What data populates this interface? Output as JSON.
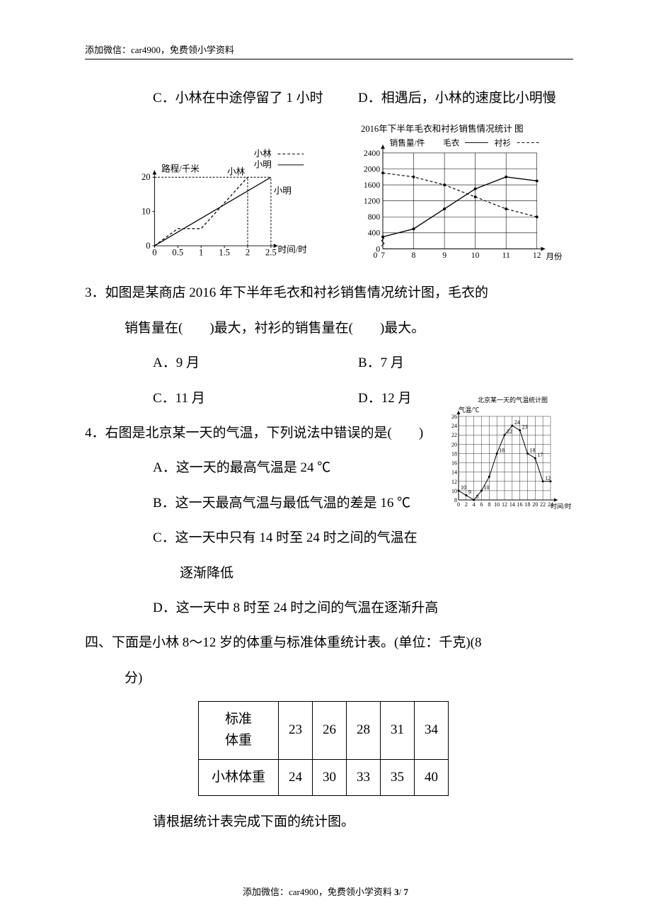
{
  "header": {
    "note": "添加微信：car4900，免费领小学资料"
  },
  "q2_options": {
    "c": "C．小林在中途停留了 1 小时",
    "d": "D．相遇后，小林的速度比小明慢"
  },
  "chart_distance": {
    "type": "line",
    "title_y": "路程/千米",
    "title_x": "时间/时",
    "legend": {
      "lin": "小林",
      "ming": "小明"
    },
    "ylim": [
      0,
      20
    ],
    "yticks": [
      0,
      10,
      20
    ],
    "xlim": [
      0,
      2.5
    ],
    "xticks": [
      0,
      0.5,
      1,
      1.5,
      2,
      2.5
    ],
    "grid_color": "#000000",
    "series_lin": {
      "color": "#000000",
      "dash": "4,3",
      "points": [
        [
          0,
          0
        ],
        [
          0.5,
          5
        ],
        [
          1,
          5
        ],
        [
          2,
          20
        ]
      ]
    },
    "series_ming": {
      "color": "#000000",
      "dash": "",
      "points": [
        [
          0,
          0
        ],
        [
          2.5,
          20
        ]
      ]
    },
    "label_lin": "小林",
    "label_ming": "小明"
  },
  "chart_sales": {
    "type": "line",
    "title": "2016年下半年毛衣和衬衫销售情况统计 图",
    "title_fontsize": 14,
    "ylabel": "销售量/件",
    "xlabel": "月份",
    "legend": {
      "sweater": "毛衣",
      "shirt": "衬衫"
    },
    "ylim": [
      0,
      2400
    ],
    "ytick_step": 400,
    "xticks": [
      7,
      8,
      9,
      10,
      11,
      12
    ],
    "grid_color": "#000000",
    "series_sweater": {
      "color": "#000000",
      "dash": "",
      "points": [
        [
          7,
          300
        ],
        [
          8,
          500
        ],
        [
          9,
          1000
        ],
        [
          10,
          1500
        ],
        [
          11,
          1800
        ],
        [
          12,
          1700
        ]
      ]
    },
    "series_shirt": {
      "color": "#000000",
      "dash": "4,3",
      "points": [
        [
          7,
          1900
        ],
        [
          8,
          1800
        ],
        [
          9,
          1600
        ],
        [
          10,
          1300
        ],
        [
          11,
          1000
        ],
        [
          12,
          800
        ]
      ]
    }
  },
  "q3": {
    "text_a": "3．如图是某商店 2016 年下半年毛衣和衬衫销售情况统计图，毛衣的",
    "text_b": "销售量在(　　)最大，衬衫的销售量在(　　)最大。",
    "opts": {
      "a": "A．9 月",
      "b": "B．7 月",
      "c": "C．11 月",
      "d": "D．12 月"
    }
  },
  "q4": {
    "text": "4．右图是北京某一天的气温，下列说法中错误的是(　　)",
    "a": "A．这一天的最高气温是 24 ℃",
    "b": "B．这一天最高气温与最低气温的差是 16 ℃",
    "c1": "C．这一天中只有 14 时至 24 时之间的气温在",
    "c2": "逐渐降低",
    "d": "D．这一天中 8 时至 24 时之间的气温在逐渐升高"
  },
  "chart_temp": {
    "type": "line",
    "title": "北京某一天的气温统计图",
    "ylabel": "气温/℃",
    "xlabel": "时间/时",
    "ylim": [
      8,
      26
    ],
    "ytick_step": 2,
    "xlim": [
      0,
      24
    ],
    "xtick_step": 2,
    "grid_color": "#000000",
    "series": {
      "color": "#000000",
      "points": [
        [
          0,
          10
        ],
        [
          2,
          9
        ],
        [
          4,
          8
        ],
        [
          6,
          10
        ],
        [
          8,
          13
        ],
        [
          10,
          18
        ],
        [
          12,
          22
        ],
        [
          14,
          24
        ],
        [
          16,
          23
        ],
        [
          18,
          18
        ],
        [
          20,
          17
        ],
        [
          22,
          12
        ],
        [
          24,
          12
        ]
      ]
    },
    "point_labels": {
      "0": "10",
      "2": "9",
      "4": "8",
      "6": "10",
      "10": "18",
      "12": "22",
      "14": "24",
      "16": "23",
      "18": "18",
      "20": "17",
      "22": "12"
    }
  },
  "q_table": {
    "intro_a": "四、下面是小林 8～12 岁的体重与标准体重统计表。(单位：千克)(8",
    "intro_b": "分)",
    "row1_hdr": "标准\n体重",
    "row1": [
      "23",
      "26",
      "28",
      "31",
      "34"
    ],
    "row2_hdr": "小林体重",
    "row2": [
      "24",
      "30",
      "33",
      "35",
      "40"
    ],
    "after": "请根据统计表完成下面的统计图。"
  },
  "footer": {
    "text_a": "添加微信：car4900，免费领小学资料 ",
    "page": "3",
    "slash": "/ ",
    "total": "7"
  }
}
